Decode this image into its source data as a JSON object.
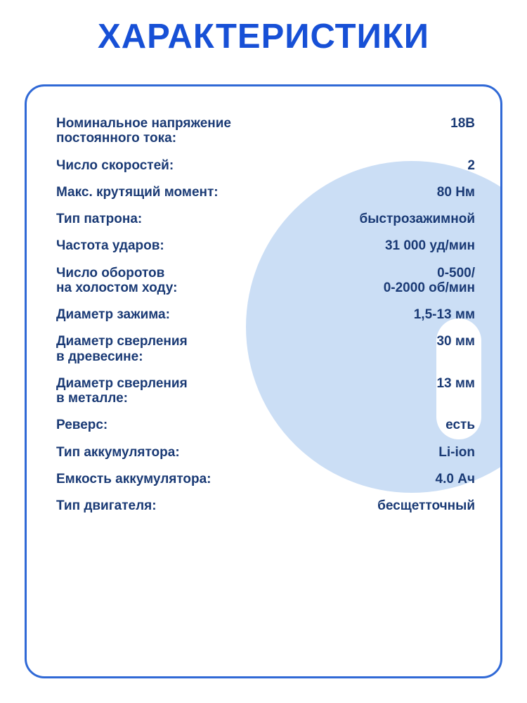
{
  "page": {
    "title": "ХАРАКТЕРИСТИКИ"
  },
  "colors": {
    "title": "#1750d6",
    "text": "#1a3a75",
    "card_border": "#3069d6",
    "circle": "#cbdef5"
  },
  "specs": {
    "rows": [
      {
        "label": "Номинальное напряжение\nпостоянного тока:",
        "value": "18В"
      },
      {
        "label": "Число скоростей:",
        "value": "2"
      },
      {
        "label": "Макс. крутящий момент:",
        "value": "80 Нм"
      },
      {
        "label": "Тип патрона:",
        "value": "быстрозажимной"
      },
      {
        "label": "Частота ударов:",
        "value": "31 000 уд/мин"
      },
      {
        "label": "Число оборотов\nна холостом ходу:",
        "value": "0-500/\n0-2000 об/мин"
      },
      {
        "label": "Диаметр зажима:",
        "value": "1,5-13 мм"
      },
      {
        "label": "Диаметр сверления\nв древесине:",
        "value": "30 мм"
      },
      {
        "label": "Диаметр сверления\nв металле:",
        "value": "13 мм"
      },
      {
        "label": "Реверс:",
        "value": "есть"
      },
      {
        "label": "Тип аккумулятора:",
        "value": "Li-ion"
      },
      {
        "label": "Емкость аккумулятора:",
        "value": "4.0 Ач"
      },
      {
        "label": "Тип двигателя:",
        "value": "бесщетточный"
      }
    ]
  }
}
